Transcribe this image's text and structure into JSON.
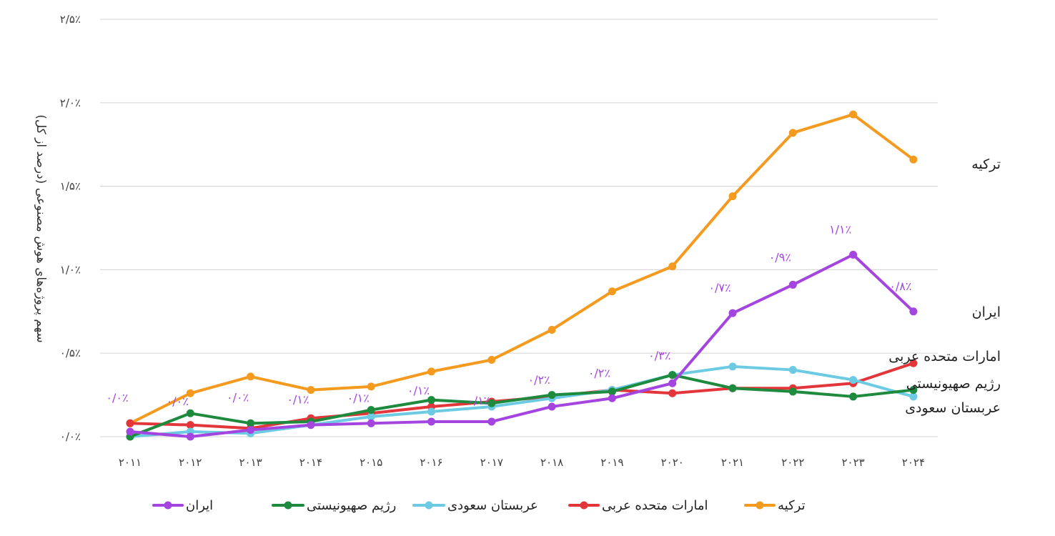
{
  "chart_data": {
    "type": "line",
    "title": "",
    "ylabel": "سهم پروژه‌های هوش مصنوعی (درصد از کل)",
    "xlabel": "",
    "ylim": [
      0,
      2.5
    ],
    "yticks": [
      0,
      0.5,
      1.0,
      1.5,
      2.0,
      2.5
    ],
    "ytick_labels": [
      "۰/۰٪",
      "۰/۵٪",
      "۱/۰٪",
      "۱/۵٪",
      "۲/۰٪",
      "۲/۵٪"
    ],
    "x": [
      2011,
      2012,
      2013,
      2014,
      2015,
      2016,
      2017,
      2018,
      2019,
      2020,
      2021,
      2022,
      2023,
      2024
    ],
    "xtick_labels": [
      "۲۰۱۱",
      "۲۰۱۲",
      "۲۰۱۳",
      "۲۰۱۴",
      "۲۰۱۵",
      "۲۰۱۶",
      "۲۰۱۷",
      "۲۰۱۸",
      "۲۰۱۹",
      "۲۰۲۰",
      "۲۰۲۱",
      "۲۰۲۲",
      "۲۰۲۳",
      "۲۰۲۴"
    ],
    "grid": true,
    "legend_position": "bottom",
    "series": [
      {
        "name": "ترکیه",
        "color": "#f39a1f",
        "values": [
          0.08,
          0.26,
          0.36,
          0.28,
          0.3,
          0.39,
          0.46,
          0.64,
          0.87,
          1.02,
          1.44,
          1.82,
          1.93,
          1.66
        ]
      },
      {
        "name": "امارات متحده عربی",
        "color": "#e2363a",
        "values": [
          0.08,
          0.07,
          0.05,
          0.11,
          0.14,
          0.18,
          0.21,
          0.24,
          0.28,
          0.26,
          0.29,
          0.29,
          0.32,
          0.44
        ]
      },
      {
        "name": "عربستان سعودی",
        "color": "#6ccbe3",
        "values": [
          0.0,
          0.03,
          0.02,
          0.07,
          0.12,
          0.15,
          0.18,
          0.23,
          0.28,
          0.37,
          0.42,
          0.4,
          0.34,
          0.24
        ]
      },
      {
        "name": "رژیم صهیونیستی",
        "color": "#1e8a3e",
        "values": [
          0.0,
          0.14,
          0.08,
          0.09,
          0.16,
          0.22,
          0.2,
          0.25,
          0.27,
          0.37,
          0.29,
          0.27,
          0.24,
          0.28
        ]
      },
      {
        "name": "ایران",
        "color": "#a445e0",
        "values": [
          0.03,
          0.0,
          0.04,
          0.07,
          0.08,
          0.09,
          0.09,
          0.18,
          0.23,
          0.32,
          0.74,
          0.91,
          1.09,
          0.75
        ]
      }
    ],
    "data_labels": {
      "series": "ایران",
      "labels": [
        "۰/۰٪",
        "۰/۰٪",
        "۰/۰٪",
        "۰/۱٪",
        "۰/۱٪",
        "۰/۱٪",
        "۰/۱٪",
        "۰/۲٪",
        "۰/۲٪",
        "۰/۳٪",
        "۰/۷٪",
        "۰/۹٪",
        "۱/۱٪",
        "۰/۸٪"
      ]
    },
    "end_labels": [
      "ترکیه",
      "ایران",
      "امارات متحده عربی",
      "رژیم صهیونیستی",
      "عربستان سعودی"
    ],
    "legend_order": [
      "ایران",
      "رژیم صهیونیستی",
      "عربستان سعودی",
      "امارات متحده عربی",
      "ترکیه"
    ]
  }
}
